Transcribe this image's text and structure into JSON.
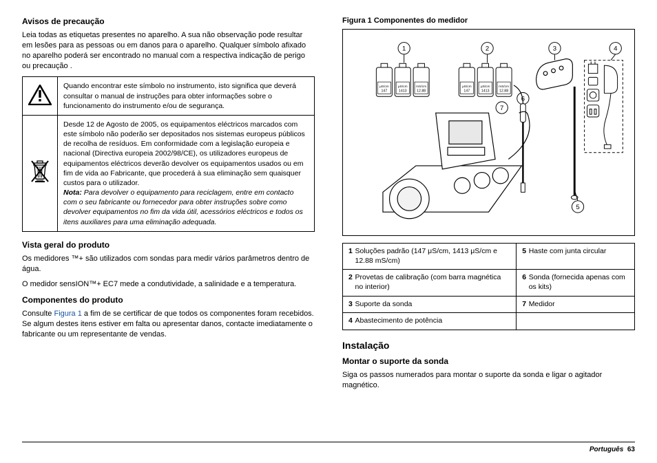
{
  "left": {
    "h_precaution": "Avisos de precaução",
    "p_precaution": "Leia todas as etiquetas presentes no aparelho. A sua não observação pode resultar em lesões para as pessoas ou em danos para o aparelho. Qualquer símbolo afixado no aparelho poderá ser encontrado no manual com a respectiva indicação de perigo ou precaução .",
    "warn1": "Quando encontrar este símbolo no instrumento, isto significa que deverá consultar o manual de instruções para obter informações sobre o funcionamento do instrumento e/ou de segurança.",
    "warn2_main": "Desde 12 de Agosto de 2005, os equipamentos eléctricos marcados com este símbolo não poderão ser depositados nos sistemas europeus públicos de recolha de resíduos. Em conformidade com a legislação europeia e nacional (Directiva europeia 2002/98/CE), os utilizadores europeus de equipamentos eléctricos deverão devolver os equipamentos usados ou em fim de vida ao Fabricante, que procederá à sua eliminação sem quaisquer custos para o utilizador.",
    "warn2_note_label": "Nota:",
    "warn2_note": " Para devolver o equipamento para reciclagem, entre em contacto com o seu fabricante ou fornecedor para obter instruções sobre como devolver equipamentos no fim da vida útil, acessórios eléctricos e todos os itens auxiliares para uma eliminação adequada.",
    "h_overview": "Vista geral do produto",
    "p_overview1": "Os medidores ™+ são utilizados com sondas para medir vários parâmetros dentro de água.",
    "p_overview2": "O medidor sensION™+ EC7 mede a condutividade, a salinidade e a temperatura.",
    "h_components": "Componentes do produto",
    "p_components1": "Consulte ",
    "p_components_link": "Figura 1",
    "p_components2": " a fim de se certificar de que todos os componentes foram recebidos. Se algum destes itens estiver em falta ou apresentar danos, contacte imediatamente o fabricante ou um representante de vendas."
  },
  "right": {
    "fig_caption": "Figura 1  Componentes do medidor",
    "bottles": [
      [
        "μS/cm",
        "147"
      ],
      [
        "μS/cm",
        "1413"
      ],
      [
        "mS/cm",
        "12.88"
      ]
    ],
    "callouts": [
      "1",
      "2",
      "3",
      "4",
      "5",
      "6",
      "7"
    ],
    "comp": [
      {
        "n": "1",
        "t": "Soluções padrão (147 μS/cm, 1413 μS/cm e 12.88 mS/cm)"
      },
      {
        "n": "2",
        "t": "Provetas de calibração (com barra magnética no interior)"
      },
      {
        "n": "3",
        "t": "Suporte da sonda"
      },
      {
        "n": "4",
        "t": "Abastecimento de potência"
      },
      {
        "n": "5",
        "t": "Haste com junta circular"
      },
      {
        "n": "6",
        "t": "Sonda (fornecida apenas com os kits)"
      },
      {
        "n": "7",
        "t": "Medidor"
      }
    ],
    "h_install": "Instalação",
    "h_mount": "Montar o suporte da sonda",
    "p_mount": "Siga os passos numerados para montar o suporte da sonda e ligar o agitador magnético."
  },
  "footer": {
    "lang": "Português",
    "page": "63"
  }
}
